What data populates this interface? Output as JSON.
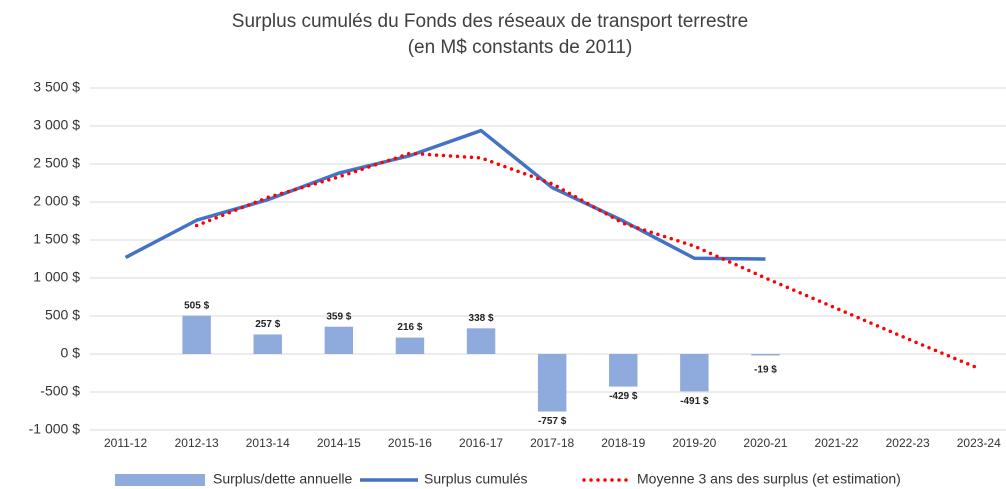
{
  "chart_data": {
    "type": "bar",
    "title": "Surplus cumulés du Fonds des réseaux de transport terrestre",
    "subtitle": "(en M$ constants de 2011)",
    "categories": [
      "2011-12",
      "2012-13",
      "2013-14",
      "2014-15",
      "2015-16",
      "2016-17",
      "2017-18",
      "2018-19",
      "2019-20",
      "2020-21",
      "2021-22",
      "2022-23",
      "2023-24"
    ],
    "series": [
      {
        "name": "Surplus/dette annuelle",
        "type": "bar",
        "color": "#8faadc",
        "values": [
          null,
          505,
          257,
          359,
          216,
          338,
          -757,
          -429,
          -491,
          -19,
          null,
          null,
          null
        ],
        "value_labels": [
          null,
          "505 $",
          "257 $",
          "359 $",
          "216 $",
          "338 $",
          "-757 $",
          "-429 $",
          "-491 $",
          "-19 $",
          null,
          null,
          null
        ]
      },
      {
        "name": "Surplus cumulés",
        "type": "line",
        "color": "#4472c4",
        "style": "solid",
        "values": [
          1270,
          1760,
          2030,
          2380,
          2610,
          2940,
          2190,
          1750,
          1260,
          1250,
          null,
          null,
          null
        ]
      },
      {
        "name": "Moyenne 3 ans des surplus (et estimation)",
        "type": "line",
        "color": "#ff0000",
        "style": "dotted",
        "values": [
          null,
          1690,
          2060,
          2330,
          2640,
          2580,
          2240,
          1720,
          1420,
          1000,
          600,
          200,
          -190
        ]
      }
    ],
    "ylim": [
      -1000,
      3500
    ],
    "yticks": [
      {
        "value": -1000,
        "label": "-1 000 $"
      },
      {
        "value": -500,
        "label": "-500 $"
      },
      {
        "value": 0,
        "label": "0 $"
      },
      {
        "value": 500,
        "label": "500 $"
      },
      {
        "value": 1000,
        "label": "1 000 $"
      },
      {
        "value": 1500,
        "label": "1 500 $"
      },
      {
        "value": 2000,
        "label": "2 000 $"
      },
      {
        "value": 2500,
        "label": "2 500 $"
      },
      {
        "value": 3000,
        "label": "3 000 $"
      },
      {
        "value": 3500,
        "label": "3 500 $"
      }
    ],
    "grid": true,
    "legend": "bottom"
  }
}
